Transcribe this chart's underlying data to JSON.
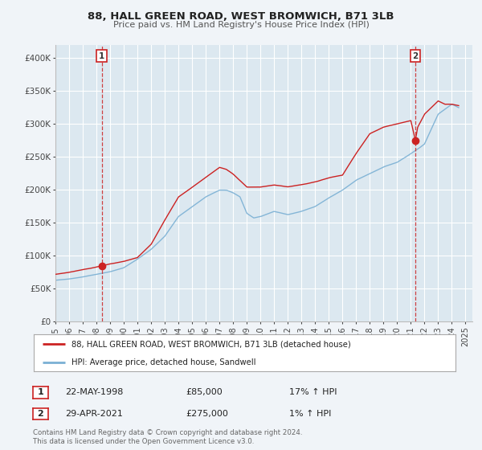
{
  "title": "88, HALL GREEN ROAD, WEST BROMWICH, B71 3LB",
  "subtitle": "Price paid vs. HM Land Registry's House Price Index (HPI)",
  "background_color": "#f0f4f8",
  "plot_bg_color": "#dce8f0",
  "grid_color": "#ffffff",
  "red_line_color": "#cc2222",
  "blue_line_color": "#7ab0d4",
  "sale1_date_num": 1998.38,
  "sale1_price": 85000,
  "sale1_label": "22-MAY-1998",
  "sale2_date_num": 2021.33,
  "sale2_price": 275000,
  "sale2_label": "29-APR-2021",
  "legend_label_red": "88, HALL GREEN ROAD, WEST BROMWICH, B71 3LB (detached house)",
  "legend_label_blue": "HPI: Average price, detached house, Sandwell",
  "footer1": "Contains HM Land Registry data © Crown copyright and database right 2024.",
  "footer2": "This data is licensed under the Open Government Licence v3.0.",
  "ylim": [
    0,
    420000
  ],
  "xlim_start": 1995.0,
  "xlim_end": 2025.5,
  "yticks": [
    0,
    50000,
    100000,
    150000,
    200000,
    250000,
    300000,
    350000,
    400000
  ],
  "ytick_labels": [
    "£0",
    "£50K",
    "£100K",
    "£150K",
    "£200K",
    "£250K",
    "£300K",
    "£350K",
    "£400K"
  ],
  "xtick_years": [
    1995,
    1996,
    1997,
    1998,
    1999,
    2000,
    2001,
    2002,
    2003,
    2004,
    2005,
    2006,
    2007,
    2008,
    2009,
    2010,
    2011,
    2012,
    2013,
    2014,
    2015,
    2016,
    2017,
    2018,
    2019,
    2020,
    2021,
    2022,
    2023,
    2024,
    2025
  ],
  "hpi_anchors_t": [
    1995,
    1996,
    1997,
    1998,
    1999,
    2000,
    2001,
    2002,
    2003,
    2004,
    2005,
    2006,
    2007,
    2007.5,
    2008,
    2008.5,
    2009,
    2009.5,
    2010,
    2011,
    2012,
    2013,
    2014,
    2015,
    2016,
    2017,
    2018,
    2019,
    2020,
    2021,
    2021.5,
    2022,
    2023,
    2024,
    2024.5
  ],
  "hpi_anchors_v": [
    63000,
    65000,
    68000,
    72000,
    76000,
    82000,
    95000,
    110000,
    130000,
    160000,
    175000,
    190000,
    200000,
    200000,
    196000,
    190000,
    165000,
    158000,
    160000,
    168000,
    163000,
    168000,
    175000,
    188000,
    200000,
    215000,
    225000,
    235000,
    242000,
    255000,
    262000,
    270000,
    315000,
    330000,
    325000
  ],
  "red_anchors_t": [
    1995,
    1996,
    1997,
    1998,
    1998.38,
    1999,
    2000,
    2001,
    2002,
    2003,
    2004,
    2005,
    2006,
    2007,
    2007.5,
    2008,
    2008.5,
    2009,
    2010,
    2011,
    2012,
    2013,
    2014,
    2015,
    2016,
    2017,
    2017.5,
    2018,
    2019,
    2020,
    2021,
    2021.33,
    2021.5,
    2022,
    2022.5,
    2023,
    2023.5,
    2024,
    2024.5
  ],
  "red_anchors_v": [
    72000,
    75000,
    79000,
    83000,
    85000,
    88000,
    92000,
    98000,
    118000,
    155000,
    190000,
    205000,
    220000,
    235000,
    232000,
    225000,
    215000,
    205000,
    205000,
    208000,
    205000,
    208000,
    212000,
    218000,
    222000,
    255000,
    270000,
    285000,
    295000,
    300000,
    305000,
    275000,
    295000,
    315000,
    325000,
    335000,
    330000,
    330000,
    328000
  ]
}
